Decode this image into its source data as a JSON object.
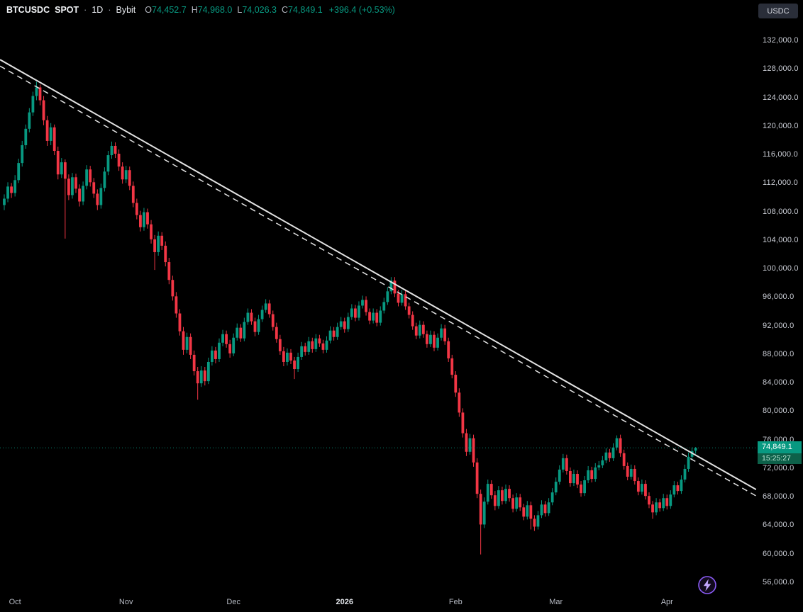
{
  "header": {
    "symbol": "BTCUSDC",
    "market": "SPOT",
    "sep": "·",
    "interval": "1D",
    "exchange": "Bybit",
    "ohlc": {
      "o_label": "O",
      "o": "74,452.7",
      "h_label": "H",
      "h": "74,968.0",
      "l_label": "L",
      "l": "74,026.3",
      "c_label": "C",
      "c": "74,849.1",
      "change": "+396.4 (+0.53%)"
    }
  },
  "right_axis": {
    "currency_button": "USDC",
    "price_label": "74,849.1",
    "countdown": "15:25:27"
  },
  "colors": {
    "background": "#000000",
    "up": "#089981",
    "down": "#f23645",
    "axis_text": "#c9ccd4",
    "trendline": "#e3e3e3",
    "price_label_bg": "#089981",
    "countdown_bg": "#0d6049",
    "accent_purple": "#8b5cf6"
  },
  "chart_data": {
    "type": "candlestick",
    "title": "BTCUSDC SPOT · 1D · Bybit",
    "legend_position": "top-left",
    "grid": false,
    "current_price": 74849.1,
    "y_axis": {
      "side": "right",
      "tick_step": 4000,
      "ticks": [
        132000,
        128000,
        124000,
        120000,
        116000,
        112000,
        108000,
        104000,
        100000,
        96000,
        92000,
        88000,
        84000,
        80000,
        76000,
        72000,
        68000,
        64000,
        60000,
        56000
      ]
    },
    "x_axis": {
      "ticks": [
        {
          "label": "Oct",
          "index": 3
        },
        {
          "label": "Nov",
          "index": 34
        },
        {
          "label": "Dec",
          "index": 64
        },
        {
          "label": "2026",
          "index": 95,
          "emphasis": true
        },
        {
          "label": "Feb",
          "index": 126
        },
        {
          "label": "Mar",
          "index": 154
        },
        {
          "label": "Apr",
          "index": 185
        }
      ]
    },
    "trendlines": [
      {
        "name": "descending-resistance-solid",
        "style": "solid",
        "price_at_left_edge": 129300,
        "price_at_right_edge": 69000
      },
      {
        "name": "descending-resistance-dashed",
        "style": "dashed",
        "price_at_left_edge": 128400,
        "price_at_right_edge": 68100
      }
    ],
    "candles": [
      [
        108900,
        110400,
        108200,
        109800
      ],
      [
        109800,
        112100,
        109300,
        111500
      ],
      [
        111500,
        112000,
        109900,
        110600
      ],
      [
        110600,
        113100,
        110100,
        112400
      ],
      [
        112400,
        115400,
        112000,
        114800
      ],
      [
        114800,
        117900,
        114300,
        117300
      ],
      [
        117300,
        120200,
        116800,
        119600
      ],
      [
        119600,
        122500,
        119100,
        121900
      ],
      [
        121900,
        124800,
        121400,
        124200
      ],
      [
        124200,
        126200,
        123600,
        125400
      ],
      [
        125400,
        125800,
        122900,
        123600
      ],
      [
        123600,
        124200,
        120100,
        120800
      ],
      [
        120800,
        121400,
        117200,
        117900
      ],
      [
        117900,
        120400,
        117300,
        119800
      ],
      [
        119800,
        120200,
        115900,
        116500
      ],
      [
        116500,
        117100,
        112500,
        113200
      ],
      [
        113200,
        115500,
        112700,
        114900
      ],
      [
        114900,
        115300,
        104200,
        112600
      ],
      [
        112600,
        113200,
        109600,
        110300
      ],
      [
        110300,
        113400,
        109800,
        112800
      ],
      [
        112800,
        113300,
        110600,
        111200
      ],
      [
        111200,
        111800,
        108700,
        109400
      ],
      [
        109400,
        112200,
        108900,
        111600
      ],
      [
        111600,
        114500,
        111100,
        113900
      ],
      [
        113900,
        114400,
        111500,
        112100
      ],
      [
        112100,
        112700,
        109900,
        110500
      ],
      [
        110500,
        111100,
        108200,
        108900
      ],
      [
        108900,
        111900,
        108400,
        111300
      ],
      [
        111300,
        114200,
        110800,
        113600
      ],
      [
        113600,
        116500,
        113100,
        115900
      ],
      [
        115900,
        117800,
        115400,
        117200
      ],
      [
        117200,
        117700,
        115500,
        116100
      ],
      [
        116100,
        116700,
        113700,
        114300
      ],
      [
        114300,
        114900,
        111900,
        112500
      ],
      [
        112500,
        114400,
        112000,
        113800
      ],
      [
        113800,
        114300,
        111000,
        111600
      ],
      [
        111600,
        112200,
        108600,
        109200
      ],
      [
        109200,
        109800,
        106900,
        107500
      ],
      [
        107500,
        108100,
        105200,
        105800
      ],
      [
        105800,
        108500,
        105300,
        107900
      ],
      [
        107900,
        108400,
        105600,
        106200
      ],
      [
        106200,
        106800,
        103500,
        104100
      ],
      [
        104100,
        104700,
        99800,
        102300
      ],
      [
        102300,
        105200,
        101800,
        104600
      ],
      [
        104600,
        105100,
        102600,
        103200
      ],
      [
        103200,
        103800,
        100300,
        100900
      ],
      [
        100900,
        101500,
        97800,
        98400
      ],
      [
        98400,
        99000,
        95500,
        96100
      ],
      [
        96100,
        96700,
        93100,
        93700
      ],
      [
        93700,
        94300,
        90600,
        91200
      ],
      [
        91200,
        91800,
        87900,
        88600
      ],
      [
        88600,
        91000,
        88100,
        90400
      ],
      [
        90400,
        90900,
        87300,
        87900
      ],
      [
        87900,
        88500,
        85000,
        85600
      ],
      [
        85600,
        86200,
        81600,
        83900
      ],
      [
        83900,
        86300,
        83400,
        85700
      ],
      [
        85700,
        86200,
        83600,
        84200
      ],
      [
        84200,
        87500,
        83800,
        86900
      ],
      [
        86900,
        89100,
        86400,
        88500
      ],
      [
        88500,
        89000,
        86700,
        87300
      ],
      [
        87300,
        90200,
        86900,
        89600
      ],
      [
        89600,
        91400,
        89100,
        90800
      ],
      [
        90800,
        91300,
        88900,
        89400
      ],
      [
        89400,
        90000,
        87500,
        88100
      ],
      [
        88100,
        90900,
        87700,
        90300
      ],
      [
        90300,
        92300,
        89900,
        91700
      ],
      [
        91700,
        92200,
        89700,
        90200
      ],
      [
        90200,
        93100,
        89800,
        92500
      ],
      [
        92500,
        94400,
        92100,
        93800
      ],
      [
        93800,
        94300,
        92100,
        92600
      ],
      [
        92600,
        93100,
        90500,
        91100
      ],
      [
        91100,
        93500,
        90700,
        92900
      ],
      [
        92900,
        94800,
        92500,
        94200
      ],
      [
        94200,
        95700,
        93800,
        95100
      ],
      [
        95100,
        95600,
        93100,
        93600
      ],
      [
        93600,
        94100,
        91300,
        91800
      ],
      [
        91800,
        92400,
        89600,
        90100
      ],
      [
        90100,
        90700,
        87900,
        88400
      ],
      [
        88400,
        89000,
        86300,
        86900
      ],
      [
        86900,
        88800,
        86400,
        88200
      ],
      [
        88200,
        88700,
        86600,
        87100
      ],
      [
        87100,
        87600,
        84500,
        85900
      ],
      [
        85900,
        88200,
        85500,
        87600
      ],
      [
        87600,
        89700,
        87200,
        89100
      ],
      [
        89100,
        89600,
        87800,
        88300
      ],
      [
        88300,
        90400,
        87900,
        89800
      ],
      [
        89800,
        90300,
        88200,
        88700
      ],
      [
        88700,
        90800,
        88300,
        90200
      ],
      [
        90200,
        90700,
        89000,
        89500
      ],
      [
        89500,
        90000,
        88100,
        88600
      ],
      [
        88600,
        90500,
        88200,
        89900
      ],
      [
        89900,
        91900,
        89500,
        91300
      ],
      [
        91300,
        91800,
        89900,
        90400
      ],
      [
        90400,
        92400,
        90000,
        91800
      ],
      [
        91800,
        93200,
        91400,
        92600
      ],
      [
        92600,
        93100,
        91000,
        91500
      ],
      [
        91500,
        93800,
        91100,
        93200
      ],
      [
        93200,
        95000,
        92800,
        94400
      ],
      [
        94400,
        94900,
        92600,
        93100
      ],
      [
        93100,
        95400,
        92700,
        94800
      ],
      [
        94800,
        96200,
        94400,
        95600
      ],
      [
        95600,
        96100,
        93400,
        93900
      ],
      [
        93900,
        94400,
        92200,
        92700
      ],
      [
        92700,
        94400,
        92300,
        93800
      ],
      [
        93800,
        94300,
        91900,
        92400
      ],
      [
        92400,
        94700,
        92000,
        94100
      ],
      [
        94100,
        95900,
        93700,
        95300
      ],
      [
        95300,
        97400,
        94900,
        96800
      ],
      [
        96800,
        98800,
        96400,
        98300
      ],
      [
        98300,
        98800,
        96000,
        96500
      ],
      [
        96500,
        97000,
        94700,
        95200
      ],
      [
        95200,
        97000,
        94800,
        96400
      ],
      [
        96400,
        96900,
        94200,
        94700
      ],
      [
        94700,
        95200,
        93000,
        93500
      ],
      [
        93500,
        94000,
        91400,
        91900
      ],
      [
        91900,
        92400,
        90100,
        90600
      ],
      [
        90600,
        92700,
        90200,
        92100
      ],
      [
        92100,
        92600,
        90300,
        90800
      ],
      [
        90800,
        91300,
        88900,
        89400
      ],
      [
        89400,
        91300,
        89000,
        90700
      ],
      [
        90700,
        91200,
        88400,
        88900
      ],
      [
        88900,
        90900,
        88500,
        90300
      ],
      [
        90300,
        92200,
        89900,
        91600
      ],
      [
        91600,
        92100,
        89300,
        89800
      ],
      [
        89800,
        90300,
        86900,
        87400
      ],
      [
        87400,
        87900,
        84600,
        85100
      ],
      [
        85100,
        85600,
        82000,
        82600
      ],
      [
        82600,
        83200,
        79200,
        79800
      ],
      [
        79800,
        80400,
        76300,
        76900
      ],
      [
        76900,
        77500,
        73700,
        74300
      ],
      [
        74300,
        76800,
        73900,
        76200
      ],
      [
        76200,
        76700,
        72200,
        72800
      ],
      [
        72800,
        73400,
        67800,
        68400
      ],
      [
        68400,
        69000,
        59900,
        64100
      ],
      [
        64100,
        67900,
        63600,
        67300
      ],
      [
        67300,
        70400,
        66900,
        69800
      ],
      [
        69800,
        70300,
        67700,
        68200
      ],
      [
        68200,
        68800,
        66100,
        66700
      ],
      [
        66700,
        69500,
        66300,
        68900
      ],
      [
        68900,
        69400,
        66900,
        67400
      ],
      [
        67400,
        69700,
        67000,
        69100
      ],
      [
        69100,
        69600,
        67300,
        67800
      ],
      [
        67800,
        68300,
        65800,
        66300
      ],
      [
        66300,
        68500,
        65900,
        67900
      ],
      [
        67900,
        68400,
        66000,
        66500
      ],
      [
        66500,
        67000,
        64700,
        65200
      ],
      [
        65200,
        67400,
        64800,
        66800
      ],
      [
        66800,
        67300,
        63400,
        64900
      ],
      [
        64900,
        65400,
        63200,
        63800
      ],
      [
        63800,
        66000,
        63400,
        65400
      ],
      [
        65400,
        67500,
        65000,
        66900
      ],
      [
        66900,
        67400,
        65200,
        65700
      ],
      [
        65700,
        67800,
        65300,
        67200
      ],
      [
        67200,
        69200,
        66800,
        68600
      ],
      [
        68600,
        70700,
        68200,
        70100
      ],
      [
        70100,
        72400,
        69700,
        71800
      ],
      [
        71800,
        74000,
        71400,
        73400
      ],
      [
        73400,
        73900,
        71100,
        71600
      ],
      [
        71600,
        72100,
        69400,
        69900
      ],
      [
        69900,
        71800,
        69500,
        71200
      ],
      [
        71200,
        71700,
        69200,
        69700
      ],
      [
        69700,
        70200,
        68000,
        68500
      ],
      [
        68500,
        70900,
        68100,
        70300
      ],
      [
        70300,
        72300,
        69900,
        71700
      ],
      [
        71700,
        72200,
        70000,
        70500
      ],
      [
        70500,
        72700,
        70100,
        72100
      ],
      [
        72100,
        73000,
        71700,
        72400
      ],
      [
        72400,
        73700,
        72000,
        73100
      ],
      [
        73100,
        74800,
        72700,
        74200
      ],
      [
        74200,
        74700,
        72900,
        73400
      ],
      [
        73400,
        75500,
        73000,
        74900
      ],
      [
        74900,
        76600,
        74500,
        76200
      ],
      [
        76200,
        76700,
        73600,
        74100
      ],
      [
        74100,
        74600,
        71800,
        72300
      ],
      [
        72300,
        72800,
        70300,
        70800
      ],
      [
        70800,
        72500,
        70400,
        71900
      ],
      [
        71900,
        72400,
        69700,
        70200
      ],
      [
        70200,
        70700,
        68200,
        68700
      ],
      [
        68700,
        70400,
        68300,
        69800
      ],
      [
        69800,
        70300,
        67600,
        68100
      ],
      [
        68100,
        68600,
        66400,
        66900
      ],
      [
        66900,
        67400,
        64900,
        65800
      ],
      [
        65800,
        67800,
        65400,
        67200
      ],
      [
        67200,
        67700,
        65900,
        66400
      ],
      [
        66400,
        68400,
        66000,
        67800
      ],
      [
        67800,
        68300,
        66200,
        66700
      ],
      [
        66700,
        68900,
        66300,
        68300
      ],
      [
        68300,
        70200,
        67900,
        69600
      ],
      [
        69600,
        70100,
        68300,
        68800
      ],
      [
        68800,
        71000,
        68400,
        70400
      ],
      [
        70400,
        72500,
        70000,
        71900
      ],
      [
        71900,
        74200,
        71500,
        73600
      ],
      [
        73600,
        74900,
        73200,
        74400
      ],
      [
        74452.7,
        74968.0,
        74026.3,
        74849.1
      ]
    ]
  }
}
